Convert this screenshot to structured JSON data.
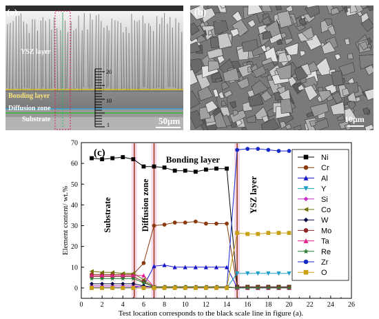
{
  "panels": {
    "a": {
      "tag": "(a)",
      "labels": {
        "ysz": "YSZ layer",
        "bonding": "Bonding layer",
        "diffusion": "Diffusion zone",
        "substrate": "Substrate"
      },
      "scale_ticks": [
        "20",
        "10",
        "1"
      ],
      "scale_bar": "50μm"
    },
    "b": {
      "tag": "(b)",
      "scale_bar": "10μm"
    }
  },
  "chart_data": {
    "type": "line",
    "panel_tag": "(c)",
    "xlabel": "Test location corresponds to the black scale line in figure (a).",
    "ylabel": "Element content/ wt.%",
    "xlim": [
      0,
      26
    ],
    "ylim": [
      -5,
      70
    ],
    "xticks": [
      "0",
      "2",
      "4",
      "6",
      "8",
      "10",
      "12",
      "14",
      "16",
      "18",
      "20",
      "22",
      "24",
      "26"
    ],
    "yticks": [
      "0",
      "10",
      "20",
      "30",
      "40",
      "50",
      "60",
      "70"
    ],
    "legend_position": "right",
    "regions": [
      "Substrate",
      "Diffusion zone",
      "Bonding layer",
      "YSZ layer"
    ],
    "boundaries": [
      5.1,
      7,
      15
    ],
    "x": [
      1,
      2,
      3,
      4,
      5,
      6,
      7,
      8,
      9,
      10,
      11,
      12,
      13,
      14,
      15,
      16,
      17,
      18,
      19,
      20
    ],
    "series": [
      {
        "name": "Ni",
        "color": "#000000",
        "marker": "square",
        "values": [
          62.5,
          62,
          62.5,
          63,
          62,
          58.5,
          58.5,
          58,
          56.5,
          56.5,
          56,
          57,
          57.5,
          57.5,
          0.5,
          0.5,
          0.5,
          0.5,
          0.5,
          0.5
        ]
      },
      {
        "name": "Cr",
        "color": "#8B3A0F",
        "marker": "circle",
        "values": [
          6.5,
          6.5,
          6.5,
          6.5,
          6.5,
          12,
          30,
          30.5,
          31.5,
          31.5,
          32,
          31,
          31,
          31,
          0.5,
          0.5,
          0.5,
          0.5,
          0.5,
          0.5
        ]
      },
      {
        "name": "Al",
        "color": "#1414C8",
        "marker": "triangle-up",
        "values": [
          0.2,
          0.2,
          0.2,
          0.2,
          0.3,
          1,
          10.5,
          11,
          10,
          10,
          10,
          10,
          10,
          10,
          0.2,
          0.2,
          0.2,
          0.2,
          0.2,
          0.2
        ]
      },
      {
        "name": "Y",
        "color": "#1E9EC8",
        "marker": "triangle-down",
        "values": [
          0,
          0,
          0,
          0,
          0,
          0,
          0,
          0,
          0,
          0,
          0,
          0,
          0,
          0,
          7,
          7,
          7,
          7,
          7,
          7
        ]
      },
      {
        "name": "Si",
        "color": "#C832C8",
        "marker": "diamond",
        "values": [
          1,
          1,
          1,
          1,
          1,
          0.5,
          0.5,
          0.5,
          0.5,
          0.5,
          0.5,
          0.5,
          0.5,
          0.5,
          0,
          0,
          0,
          0,
          0,
          0
        ]
      },
      {
        "name": "Co",
        "color": "#6E6E0A",
        "marker": "triangle-left",
        "values": [
          8,
          7.5,
          7.5,
          7,
          7,
          4,
          0.5,
          0.5,
          0.5,
          0.5,
          0.5,
          0.5,
          0.5,
          0.5,
          0,
          0,
          0,
          0,
          0,
          0
        ]
      },
      {
        "name": "W",
        "color": "#0A0A46",
        "marker": "diamond",
        "values": [
          2,
          2,
          2,
          2,
          2,
          1,
          0.3,
          0.3,
          0.3,
          0.3,
          0.3,
          0.3,
          0.3,
          0.3,
          0,
          0,
          0,
          0,
          0,
          0
        ]
      },
      {
        "name": "Mo",
        "color": "#8C2828",
        "marker": "circle",
        "values": [
          5.5,
          5.5,
          5.5,
          5.5,
          5.5,
          3,
          0.3,
          0.3,
          0.3,
          0.3,
          0.3,
          0.3,
          0.3,
          0.3,
          0,
          0,
          0,
          0,
          0,
          0
        ]
      },
      {
        "name": "Ta",
        "color": "#E0208C",
        "marker": "triangle-up",
        "values": [
          6,
          6,
          6,
          6,
          6,
          6,
          0.5,
          0.5,
          0.5,
          0.5,
          0.5,
          0.5,
          0.5,
          0.5,
          0,
          0,
          0,
          0,
          0,
          0
        ]
      },
      {
        "name": "Re",
        "color": "#2E7D32",
        "marker": "star",
        "values": [
          4.5,
          4.5,
          4.5,
          4.5,
          4.5,
          2.5,
          0.5,
          0.5,
          0.5,
          0.5,
          0.5,
          0.5,
          0.5,
          0.5,
          0,
          0,
          0,
          0,
          0,
          0
        ]
      },
      {
        "name": "Zr",
        "color": "#1428C8",
        "marker": "circle",
        "values": [
          0,
          0,
          0,
          0,
          0,
          0,
          0,
          0,
          0,
          0,
          0,
          0,
          0,
          0,
          66.5,
          67,
          67,
          66.5,
          66,
          66
        ]
      },
      {
        "name": "O",
        "color": "#C8A014",
        "marker": "square",
        "values": [
          0,
          0,
          0,
          0,
          0,
          0,
          0,
          0,
          0,
          0,
          0,
          0,
          0,
          0,
          26.5,
          26,
          26,
          26.5,
          26.5,
          26.5
        ]
      }
    ]
  }
}
